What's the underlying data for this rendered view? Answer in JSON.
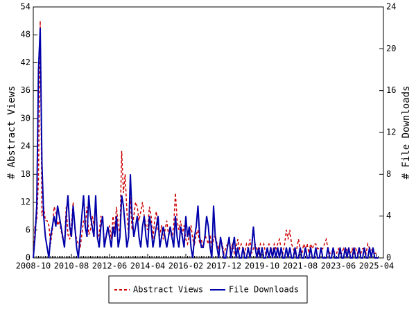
{
  "chart_data": {
    "type": "line",
    "x": [
      "2008-10",
      "2008-11",
      "2008-12",
      "2009-01",
      "2009-02",
      "2009-03",
      "2009-04",
      "2009-05",
      "2009-06",
      "2009-07",
      "2009-08",
      "2009-09",
      "2009-10",
      "2009-11",
      "2009-12",
      "2010-01",
      "2010-02",
      "2010-03",
      "2010-04",
      "2010-05",
      "2010-06",
      "2010-07",
      "2010-08",
      "2010-09",
      "2010-10",
      "2010-11",
      "2010-12",
      "2011-01",
      "2011-02",
      "2011-03",
      "2011-04",
      "2011-05",
      "2011-06",
      "2011-07",
      "2011-08",
      "2011-09",
      "2011-10",
      "2011-11",
      "2011-12",
      "2012-01",
      "2012-02",
      "2012-03",
      "2012-04",
      "2012-05",
      "2012-06",
      "2012-07",
      "2012-08",
      "2012-09",
      "2012-10",
      "2012-11",
      "2012-12",
      "2013-01",
      "2013-02",
      "2013-03",
      "2013-04",
      "2013-05",
      "2013-06",
      "2013-07",
      "2013-08",
      "2013-09",
      "2013-10",
      "2013-11",
      "2013-12",
      "2014-01",
      "2014-02",
      "2014-03",
      "2014-04",
      "2014-05",
      "2014-06",
      "2014-07",
      "2014-08",
      "2014-09",
      "2014-10",
      "2014-11",
      "2014-12",
      "2015-01",
      "2015-02",
      "2015-03",
      "2015-04",
      "2015-05",
      "2015-06",
      "2015-07",
      "2015-08",
      "2015-09",
      "2015-10",
      "2015-11",
      "2015-12",
      "2016-01",
      "2016-02",
      "2016-03",
      "2016-04",
      "2016-05",
      "2016-06",
      "2016-07",
      "2016-08",
      "2016-09",
      "2016-10",
      "2016-11",
      "2016-12",
      "2017-01",
      "2017-02",
      "2017-03",
      "2017-04",
      "2017-05",
      "2017-06",
      "2017-07",
      "2017-08",
      "2017-09",
      "2017-10",
      "2017-11",
      "2017-12",
      "2018-01",
      "2018-02",
      "2018-03",
      "2018-04",
      "2018-05",
      "2018-06",
      "2018-07",
      "2018-08",
      "2018-09",
      "2018-10",
      "2018-11",
      "2018-12",
      "2019-01",
      "2019-02",
      "2019-03",
      "2019-04",
      "2019-05",
      "2019-06",
      "2019-07",
      "2019-08",
      "2019-09",
      "2019-10",
      "2019-11",
      "2019-12",
      "2020-01",
      "2020-02",
      "2020-03",
      "2020-04",
      "2020-05",
      "2020-06",
      "2020-07",
      "2020-08",
      "2020-09",
      "2020-10",
      "2020-11",
      "2020-12",
      "2021-01",
      "2021-02",
      "2021-03",
      "2021-04",
      "2021-05",
      "2021-06",
      "2021-07",
      "2021-08",
      "2021-09",
      "2021-10",
      "2021-11",
      "2021-12",
      "2022-01",
      "2022-02",
      "2022-03",
      "2022-04",
      "2022-05",
      "2022-06",
      "2022-07",
      "2022-08",
      "2022-09",
      "2022-10",
      "2022-11",
      "2022-12",
      "2023-01",
      "2023-02",
      "2023-03",
      "2023-04",
      "2023-05",
      "2023-06",
      "2023-07",
      "2023-08",
      "2023-09",
      "2023-10",
      "2023-11",
      "2023-12",
      "2024-01",
      "2024-02",
      "2024-03",
      "2024-04",
      "2024-05",
      "2024-06",
      "2024-07",
      "2024-08",
      "2024-09",
      "2024-10",
      "2024-11",
      "2024-12",
      "2025-01",
      "2025-02",
      "2025-03",
      "2025-04",
      "2025-05"
    ],
    "xticks": [
      "2008-10",
      "2010-08",
      "2012-06",
      "2014-04",
      "2016-02",
      "2017-12",
      "2019-10",
      "2021-08",
      "2023-06",
      "2025-04"
    ],
    "ylabel": "# Abstract Views",
    "y2label": "# File Downloads",
    "ylim": [
      0,
      54
    ],
    "yticks": [
      0,
      6,
      12,
      18,
      24,
      30,
      36,
      42,
      48,
      54
    ],
    "y2lim": [
      0,
      24
    ],
    "y2ticks": [
      0,
      4,
      8,
      12,
      16,
      20,
      24
    ],
    "legend": "bottom",
    "series": [
      {
        "name": "Abstract Views",
        "color": "#cc0000",
        "dashed": true,
        "values": [
          0,
          7,
          8,
          17,
          51,
          9,
          11,
          8,
          8,
          7,
          3,
          6,
          11,
          10,
          7,
          8,
          6,
          4,
          3,
          11,
          5,
          4,
          7,
          12,
          6,
          4,
          3,
          2,
          5,
          8,
          7,
          11,
          5,
          6,
          9,
          7,
          12,
          4,
          5,
          9,
          8,
          3,
          5,
          6,
          7,
          4,
          9,
          6,
          11,
          7,
          5,
          23,
          14,
          18,
          10,
          5,
          13,
          6,
          9,
          12,
          11,
          8,
          10,
          12,
          9,
          7,
          6,
          11,
          9,
          4,
          8,
          10,
          6,
          5,
          7,
          4,
          6,
          8,
          5,
          6,
          4,
          7,
          14,
          8,
          6,
          8,
          5,
          7,
          4,
          3,
          5,
          7,
          4,
          3,
          5,
          6,
          3,
          4,
          2,
          5,
          4,
          3,
          5,
          2,
          4,
          5,
          3,
          2,
          4,
          3,
          1,
          2,
          3,
          4,
          2,
          3,
          1,
          2,
          4,
          2,
          3,
          2,
          1,
          3,
          2,
          4,
          1,
          2,
          3,
          2,
          1,
          3,
          2,
          3,
          1,
          2,
          3,
          2,
          1,
          3,
          2,
          3,
          4,
          2,
          1,
          3,
          6,
          4,
          6,
          3,
          2,
          1,
          2,
          4,
          2,
          1,
          3,
          2,
          3,
          1,
          3,
          2,
          3,
          3,
          2,
          2,
          2,
          2,
          3,
          4,
          2,
          1,
          1,
          2,
          1,
          1,
          2,
          1,
          1,
          2,
          1,
          2,
          1,
          1,
          2,
          1,
          2,
          1,
          2,
          1,
          2,
          2,
          1,
          3,
          2,
          2,
          1,
          1,
          1,
          1
        ]
      },
      {
        "name": "File Downloads",
        "color": "#0000aa",
        "axis": "y2",
        "values": [
          0,
          2,
          5,
          18,
          22,
          9,
          4,
          2,
          1,
          0,
          2,
          3,
          4,
          3,
          5,
          4,
          3,
          2,
          1,
          4,
          6,
          3,
          2,
          5,
          3,
          1,
          0,
          2,
          4,
          6,
          3,
          2,
          6,
          4,
          3,
          2,
          6,
          2,
          1,
          3,
          4,
          1,
          2,
          3,
          2,
          1,
          3,
          2,
          4,
          1,
          2,
          6,
          5,
          3,
          1,
          2,
          8,
          4,
          2,
          3,
          4,
          2,
          1,
          3,
          4,
          2,
          1,
          4,
          3,
          1,
          2,
          3,
          4,
          1,
          2,
          3,
          2,
          1,
          2,
          3,
          2,
          1,
          4,
          2,
          1,
          3,
          2,
          1,
          4,
          2,
          3,
          1,
          0,
          2,
          3,
          5,
          2,
          1,
          1,
          2,
          4,
          3,
          1,
          0,
          5,
          2,
          1,
          0,
          2,
          1,
          0,
          0,
          1,
          2,
          0,
          1,
          2,
          0,
          1,
          0,
          0,
          1,
          0,
          0,
          1,
          0,
          1,
          3,
          1,
          0,
          1,
          0,
          1,
          0,
          0,
          1,
          0,
          1,
          0,
          1,
          0,
          1,
          0,
          1,
          0,
          0,
          1,
          0,
          1,
          0,
          0,
          1,
          0,
          0,
          1,
          0,
          0,
          1,
          0,
          0,
          1,
          0,
          0,
          1,
          0,
          0,
          1,
          0,
          0,
          0,
          1,
          0,
          0,
          1,
          0,
          0,
          0,
          1,
          0,
          0,
          1,
          0,
          1,
          0,
          0,
          1,
          0,
          0,
          1,
          0,
          0,
          1,
          0,
          0,
          1,
          0,
          1,
          0,
          0,
          0
        ]
      }
    ]
  }
}
